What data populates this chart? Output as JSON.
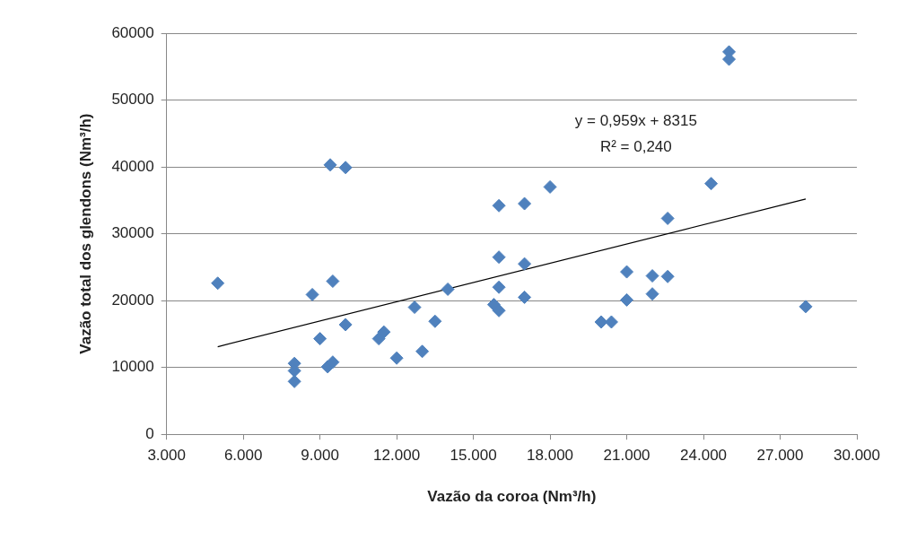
{
  "chart_data": {
    "type": "scatter",
    "xlabel": "Vazão da coroa (Nm³/h)",
    "ylabel": "Vazão total dos glendons (Nm³/h)",
    "xlim": [
      3000,
      30000
    ],
    "xticks": [
      {
        "value": 3000,
        "label": "3.000"
      },
      {
        "value": 6000,
        "label": "6.000"
      },
      {
        "value": 9000,
        "label": "9.000"
      },
      {
        "value": 12000,
        "label": "12.000"
      },
      {
        "value": 15000,
        "label": "15.000"
      },
      {
        "value": 18000,
        "label": "18.000"
      },
      {
        "value": 21000,
        "label": "21.000"
      },
      {
        "value": 24000,
        "label": "24.000"
      },
      {
        "value": 27000,
        "label": "27.000"
      },
      {
        "value": 30000,
        "label": "30.000"
      }
    ],
    "ylim": [
      0,
      60000
    ],
    "yticks": [
      0,
      10000,
      20000,
      30000,
      40000,
      50000,
      60000
    ],
    "grid": "y",
    "legend": false,
    "marker": "diamond",
    "series": [
      {
        "color": "#4f81bd",
        "x": [
          5000,
          8700,
          8000,
          8000,
          8000,
          9000,
          9300,
          9500,
          9400,
          10000,
          9500,
          10000,
          11300,
          11500,
          12000,
          12700,
          13000,
          13500,
          14000,
          15800,
          16000,
          16000,
          16000,
          16000,
          17000,
          17000,
          17000,
          18000,
          20000,
          20400,
          21000,
          21000,
          22000,
          22000,
          22600,
          22600,
          24300,
          25000,
          25000,
          28000
        ],
        "values": [
          22600,
          20900,
          10600,
          9500,
          7900,
          14300,
          10100,
          10800,
          40300,
          39900,
          22900,
          16400,
          14300,
          15300,
          11400,
          19000,
          12400,
          16900,
          21700,
          19400,
          18500,
          26500,
          22000,
          34200,
          34500,
          25500,
          20500,
          37000,
          16800,
          16800,
          24300,
          20100,
          23700,
          21000,
          23600,
          32300,
          37500,
          57200,
          56100,
          19100
        ]
      },
      {
        "type": "line",
        "color": "#000000",
        "marker": "none",
        "x": [
          5000,
          28000
        ],
        "values": [
          13100,
          35200
        ]
      }
    ],
    "annotations": [
      "y = 0,959x + 8315",
      "R² = 0,240"
    ]
  }
}
